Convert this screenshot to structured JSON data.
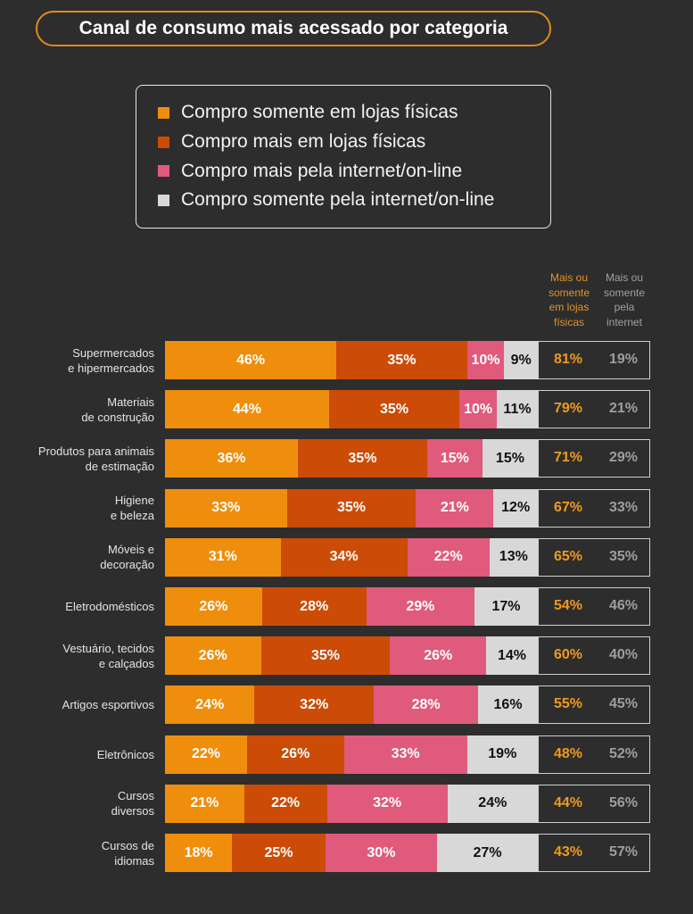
{
  "chart_data": {
    "type": "bar",
    "orientation": "horizontal",
    "stacked": true,
    "legend_position": "top",
    "grid": false,
    "title": "Canal de consumo mais acessado por categoria",
    "unit": "%",
    "categories": [
      "Supermercados\ne hipermercados",
      "Materiais\nde construção",
      "Produtos para animais\nde estimação",
      "Higiene\ne beleza",
      "Móveis e\ndecoração",
      "Eletrodomésticos",
      "Vestuário, tecidos\ne calçados",
      "Artigos esportivos",
      "Eletrônicos",
      "Cursos\ndiversos",
      "Cursos de\nidiomas"
    ],
    "series": [
      {
        "name": "Compro somente em lojas físicas",
        "color": "#EF8E0C",
        "label_color": "#FFFFFF",
        "values": [
          46,
          44,
          36,
          33,
          31,
          26,
          26,
          24,
          22,
          21,
          18
        ]
      },
      {
        "name": "Compro mais em lojas físicas",
        "color": "#CC4B06",
        "label_color": "#FFFFFF",
        "values": [
          35,
          35,
          35,
          35,
          34,
          28,
          35,
          32,
          26,
          22,
          25
        ]
      },
      {
        "name": "Compro mais pela internet/on-line",
        "color": "#E05A7B",
        "label_color": "#FFFFFF",
        "values": [
          10,
          10,
          15,
          21,
          22,
          29,
          26,
          28,
          33,
          32,
          30
        ]
      },
      {
        "name": "Compro somente pela internet/on-line",
        "color": "#D8D8D8",
        "label_color": "#111111",
        "values": [
          9,
          11,
          15,
          12,
          13,
          17,
          14,
          16,
          19,
          24,
          27
        ]
      }
    ],
    "summary": {
      "physical": {
        "label": "Mais ou\nsomente\nem lojas\nfísicas",
        "header_color": "#E3922A",
        "value_color": "#F09A1E",
        "values": [
          81,
          79,
          71,
          67,
          65,
          54,
          60,
          55,
          48,
          44,
          43
        ]
      },
      "internet": {
        "label": "Mais ou\nsomente\npela\ninternet",
        "header_color": "#A0A0A0",
        "value_color": "#9E9E9E",
        "values": [
          19,
          21,
          29,
          33,
          35,
          46,
          40,
          45,
          52,
          56,
          57
        ]
      }
    }
  }
}
